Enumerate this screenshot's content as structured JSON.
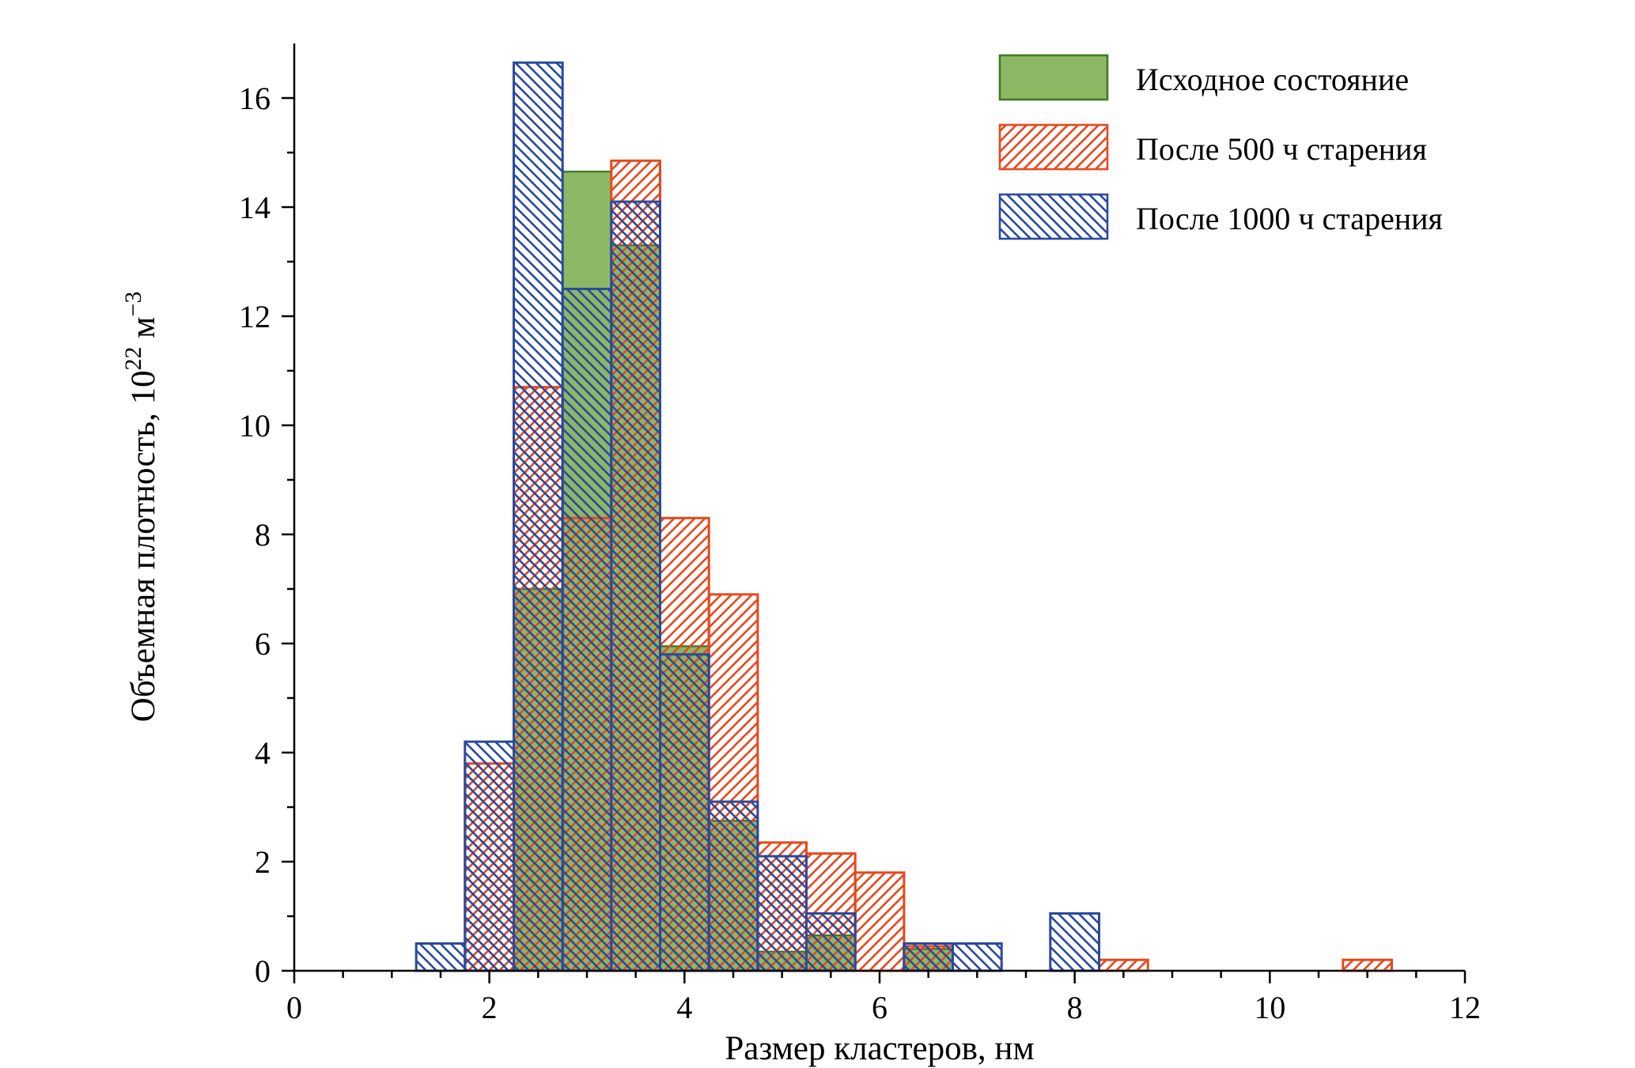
{
  "chart_data": {
    "type": "bar",
    "subtype": "overlaid-histogram",
    "title": "",
    "xlabel": "Размер кластеров, нм",
    "ylabel": "Объемная плотность, 10²² м⁻³",
    "ylabel_parts": [
      {
        "t": "Объемная плотность, 10",
        "sup": false
      },
      {
        "t": "22",
        "sup": true
      },
      {
        "t": " м",
        "sup": false
      },
      {
        "t": "−3",
        "sup": true
      }
    ],
    "xlim": [
      0,
      12
    ],
    "ylim": [
      0,
      17
    ],
    "x_ticks": [
      0,
      2,
      4,
      6,
      8,
      10,
      12
    ],
    "y_ticks": [
      0,
      2,
      4,
      6,
      8,
      10,
      12,
      14,
      16
    ],
    "x_minor_step": 0.5,
    "y_minor_step": 1,
    "bin_width": 0.5,
    "grid": false,
    "legend_position": "upper-right",
    "axis_color": "#000000",
    "series": [
      {
        "id": "initial-state",
        "name": "Исходное состояние",
        "style": "solid",
        "fill": "#8cb864",
        "edge": "#3e7a25",
        "edge_width": 2.4,
        "bars": [
          {
            "center": 2.5,
            "value": 7.0
          },
          {
            "center": 3.0,
            "value": 14.65
          },
          {
            "center": 3.5,
            "value": 13.3
          },
          {
            "center": 4.0,
            "value": 5.95
          },
          {
            "center": 4.5,
            "value": 2.75
          },
          {
            "center": 5.0,
            "value": 0.35
          },
          {
            "center": 5.5,
            "value": 0.65
          },
          {
            "center": 6.5,
            "value": 0.4
          }
        ]
      },
      {
        "id": "aged-500h",
        "name": "После 500 ч старения",
        "style": "hatch-forward",
        "fill": "none",
        "edge": "#e8481d",
        "edge_width": 3,
        "bars": [
          {
            "center": 2.0,
            "value": 3.8
          },
          {
            "center": 2.5,
            "value": 10.7
          },
          {
            "center": 3.0,
            "value": 8.3
          },
          {
            "center": 3.5,
            "value": 14.85
          },
          {
            "center": 4.0,
            "value": 8.3
          },
          {
            "center": 4.5,
            "value": 6.9
          },
          {
            "center": 5.0,
            "value": 2.35
          },
          {
            "center": 5.5,
            "value": 2.15
          },
          {
            "center": 6.0,
            "value": 1.8
          },
          {
            "center": 6.5,
            "value": 0.45
          },
          {
            "center": 8.5,
            "value": 0.2
          },
          {
            "center": 11.0,
            "value": 0.2
          }
        ]
      },
      {
        "id": "aged-1000h",
        "name": "После 1000 ч старения",
        "style": "hatch-backward",
        "fill": "none",
        "edge": "#2a4a9e",
        "edge_width": 3,
        "bars": [
          {
            "center": 1.5,
            "value": 0.5
          },
          {
            "center": 2.0,
            "value": 4.2
          },
          {
            "center": 2.5,
            "value": 16.65
          },
          {
            "center": 3.0,
            "value": 12.5
          },
          {
            "center": 3.5,
            "value": 14.1
          },
          {
            "center": 4.0,
            "value": 5.8
          },
          {
            "center": 4.5,
            "value": 3.1
          },
          {
            "center": 5.0,
            "value": 2.1
          },
          {
            "center": 5.5,
            "value": 1.05
          },
          {
            "center": 6.5,
            "value": 0.5
          },
          {
            "center": 7.0,
            "value": 0.5
          },
          {
            "center": 8.0,
            "value": 1.05
          }
        ]
      }
    ]
  }
}
